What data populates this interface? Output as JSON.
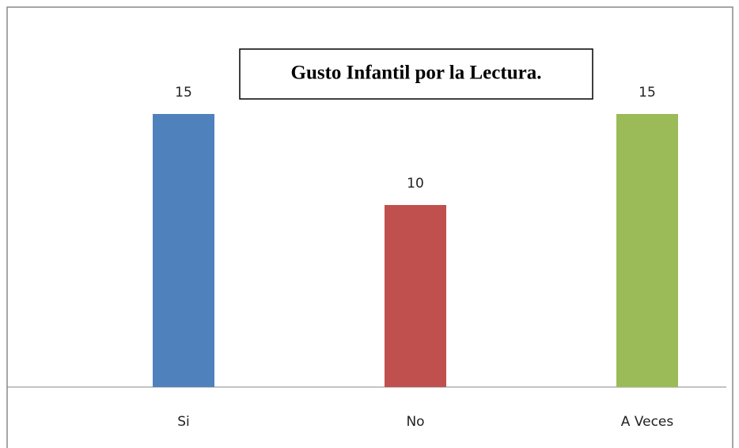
{
  "chart_data": {
    "type": "bar",
    "title": "Gusto Infantil por la Lectura.",
    "categories": [
      "Si",
      "No",
      "A Veces"
    ],
    "values": [
      15,
      10,
      15
    ],
    "colors": [
      "#4f81bd",
      "#c0504d",
      "#9bbb59"
    ]
  }
}
